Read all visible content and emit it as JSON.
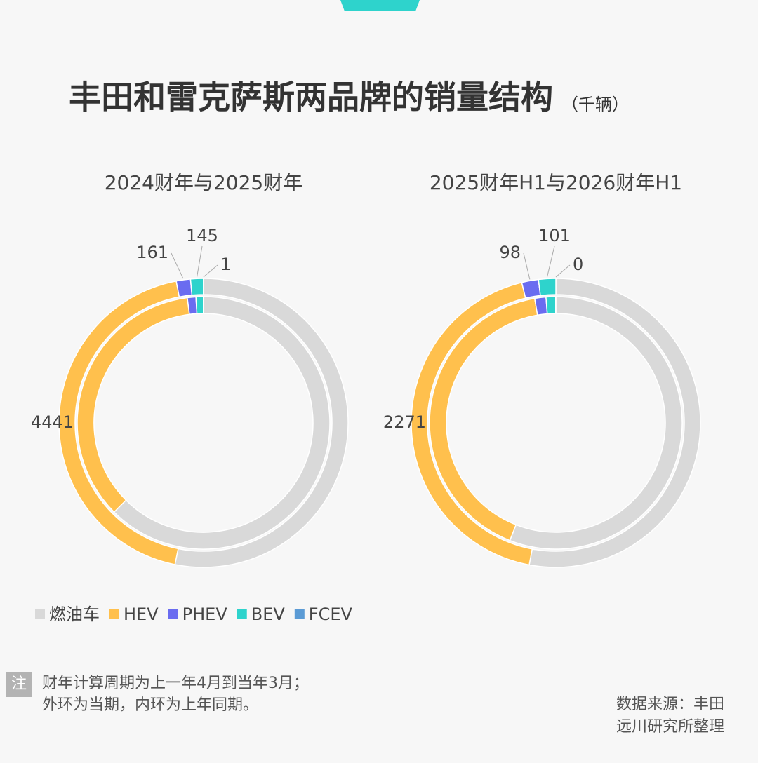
{
  "title": "丰田和雷克萨斯两品牌的销量结构",
  "unit": "（千辆）",
  "chart_data": [
    {
      "type": "pie",
      "title": "2024财年与2025财年",
      "categories": [
        "燃油车",
        "HEV",
        "PHEV",
        "BEV",
        "FCEV"
      ],
      "colors": [
        "#d9d9d9",
        "#ffc04d",
        "#6a6cf0",
        "#2ed3cc",
        "#5b9bd5"
      ],
      "series": [
        {
          "values": [
            5390,
            4441,
            161,
            145,
            1
          ]
        },
        {
          "values": [
            6300,
            3570,
            110,
            95,
            2
          ]
        }
      ]
    },
    {
      "type": "pie",
      "title": "2025财年H1与2026财年H1",
      "categories": [
        "燃油车",
        "HEV",
        "PHEV",
        "BEV",
        "FCEV"
      ],
      "colors": [
        "#d9d9d9",
        "#ffc04d",
        "#6a6cf0",
        "#2ed3cc",
        "#5b9bd5"
      ],
      "series": [
        {
          "values": [
            2780,
            2271,
            98,
            101,
            0
          ]
        },
        {
          "values": [
            2730,
            2020,
            70,
            60,
            1
          ]
        }
      ]
    }
  ],
  "note": {
    "label": "注",
    "lines": [
      "财年计算周期为上一年4月到当年3月；",
      "外环为当期，内环为上年同期。"
    ]
  },
  "source": [
    "数据来源：丰田",
    "远川研究所整理"
  ]
}
